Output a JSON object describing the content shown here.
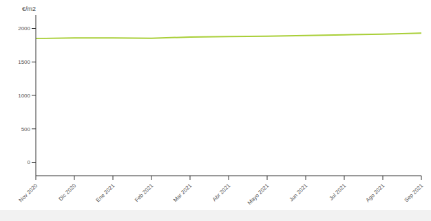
{
  "chart_data": {
    "type": "line",
    "y_label": "€/m2",
    "categories": [
      "Nov 2020",
      "Dic 2020",
      "Ene 2021",
      "Feb 2021",
      "Mar 2021",
      "Abr 2021",
      "Mayo 2021",
      "Jun 2021",
      "Jul 2021",
      "Ago 2021",
      "Sep 2021"
    ],
    "values": [
      1850,
      1858,
      1858,
      1855,
      1872,
      1880,
      1885,
      1895,
      1905,
      1915,
      1930
    ],
    "color": "#a9cf38",
    "ylim": [
      -200,
      2200
    ],
    "yticks": [
      0,
      500,
      1000,
      1500,
      2000
    ],
    "grid": false
  }
}
